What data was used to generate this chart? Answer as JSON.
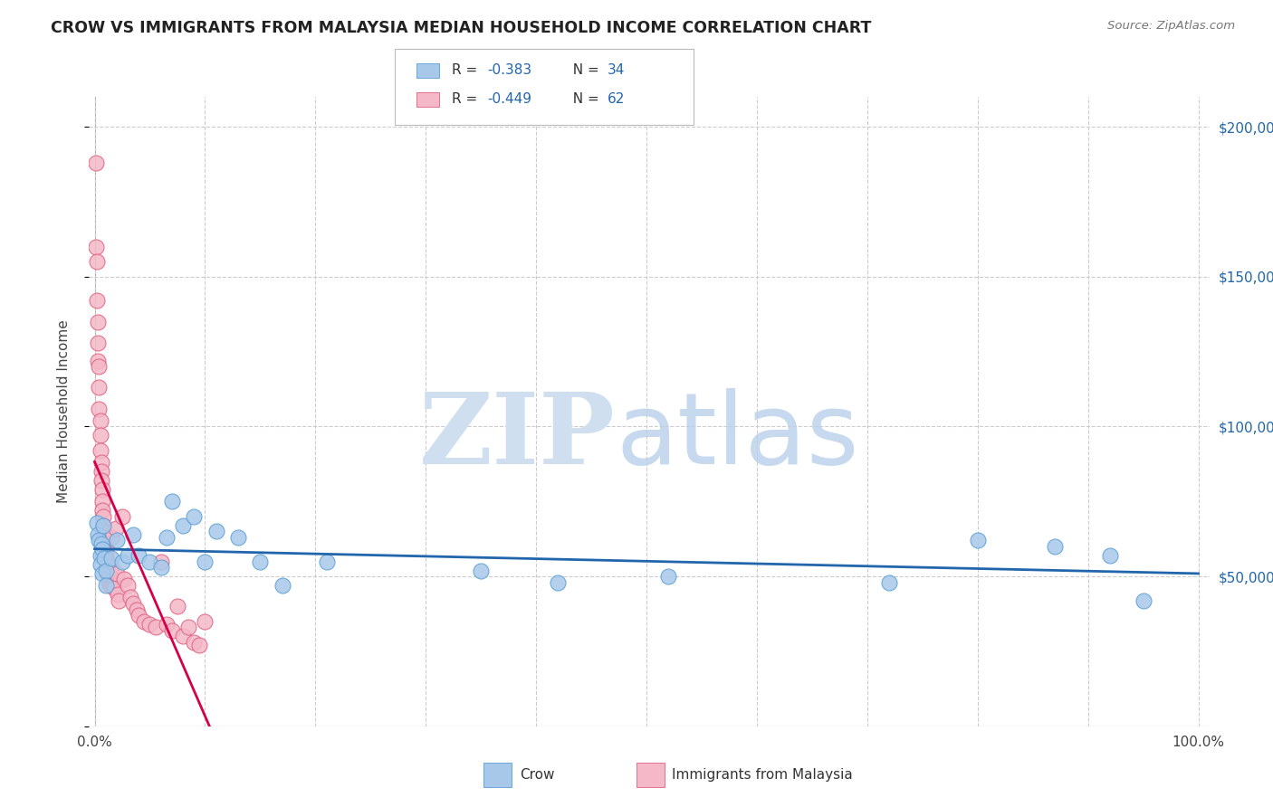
{
  "title": "CROW VS IMMIGRANTS FROM MALAYSIA MEDIAN HOUSEHOLD INCOME CORRELATION CHART",
  "source": "Source: ZipAtlas.com",
  "ylabel": "Median Household Income",
  "crow_color": "#a8c8ea",
  "crow_edge_color": "#5a9fd4",
  "malaysia_color": "#f4b8c8",
  "malaysia_edge_color": "#e06080",
  "crow_line_color": "#2166ac",
  "malaysia_line_color": "#d4004a",
  "watermark_zip_color": "#c8d4e8",
  "watermark_atlas_color": "#a8c0e4",
  "background_color": "#ffffff",
  "grid_color": "#cccccc",
  "right_tick_color": "#2166ac",
  "crow_x": [
    0.002,
    0.003,
    0.004,
    0.005,
    0.005,
    0.006,
    0.007,
    0.007,
    0.008,
    0.009,
    0.01,
    0.01,
    0.015,
    0.02,
    0.025,
    0.03,
    0.035,
    0.04,
    0.05,
    0.06,
    0.065,
    0.07,
    0.08,
    0.09,
    0.1,
    0.11,
    0.13,
    0.15,
    0.17,
    0.21,
    0.35,
    0.42,
    0.52,
    0.72,
    0.8,
    0.87,
    0.92,
    0.95
  ],
  "crow_y": [
    68000,
    64000,
    62000,
    57000,
    54000,
    61000,
    59000,
    51000,
    67000,
    56000,
    52000,
    47000,
    56000,
    62000,
    55000,
    57000,
    64000,
    57000,
    55000,
    53000,
    63000,
    75000,
    67000,
    70000,
    55000,
    65000,
    63000,
    55000,
    47000,
    55000,
    52000,
    48000,
    50000,
    48000,
    62000,
    60000,
    57000,
    42000
  ],
  "malaysia_x": [
    0.001,
    0.001,
    0.002,
    0.002,
    0.003,
    0.003,
    0.003,
    0.004,
    0.004,
    0.004,
    0.005,
    0.005,
    0.005,
    0.006,
    0.006,
    0.006,
    0.007,
    0.007,
    0.007,
    0.008,
    0.008,
    0.008,
    0.009,
    0.009,
    0.01,
    0.01,
    0.01,
    0.011,
    0.011,
    0.012,
    0.012,
    0.013,
    0.013,
    0.014,
    0.015,
    0.015,
    0.016,
    0.017,
    0.018,
    0.019,
    0.02,
    0.021,
    0.022,
    0.025,
    0.027,
    0.03,
    0.032,
    0.035,
    0.038,
    0.04,
    0.045,
    0.05,
    0.055,
    0.06,
    0.065,
    0.07,
    0.075,
    0.08,
    0.085,
    0.09,
    0.095,
    0.1
  ],
  "malaysia_y": [
    188000,
    160000,
    155000,
    142000,
    135000,
    128000,
    122000,
    120000,
    113000,
    106000,
    102000,
    97000,
    92000,
    88000,
    85000,
    82000,
    79000,
    75000,
    72000,
    70000,
    67000,
    65000,
    63000,
    61000,
    60000,
    58000,
    56000,
    55000,
    53000,
    52000,
    51000,
    50000,
    48000,
    47000,
    63000,
    53000,
    49000,
    47000,
    46000,
    66000,
    51000,
    44000,
    42000,
    70000,
    49000,
    47000,
    43000,
    41000,
    39000,
    37000,
    35000,
    34000,
    33000,
    55000,
    34000,
    32000,
    40000,
    30000,
    33000,
    28000,
    27000,
    35000
  ],
  "ylim_min": 0,
  "ylim_max": 210000,
  "xlim_min": -0.005,
  "xlim_max": 1.01,
  "y_ticks": [
    0,
    50000,
    100000,
    150000,
    200000
  ],
  "x_ticks": [
    0.0,
    0.1,
    0.2,
    0.3,
    0.4,
    0.5,
    0.6,
    0.7,
    0.8,
    0.9,
    1.0
  ]
}
